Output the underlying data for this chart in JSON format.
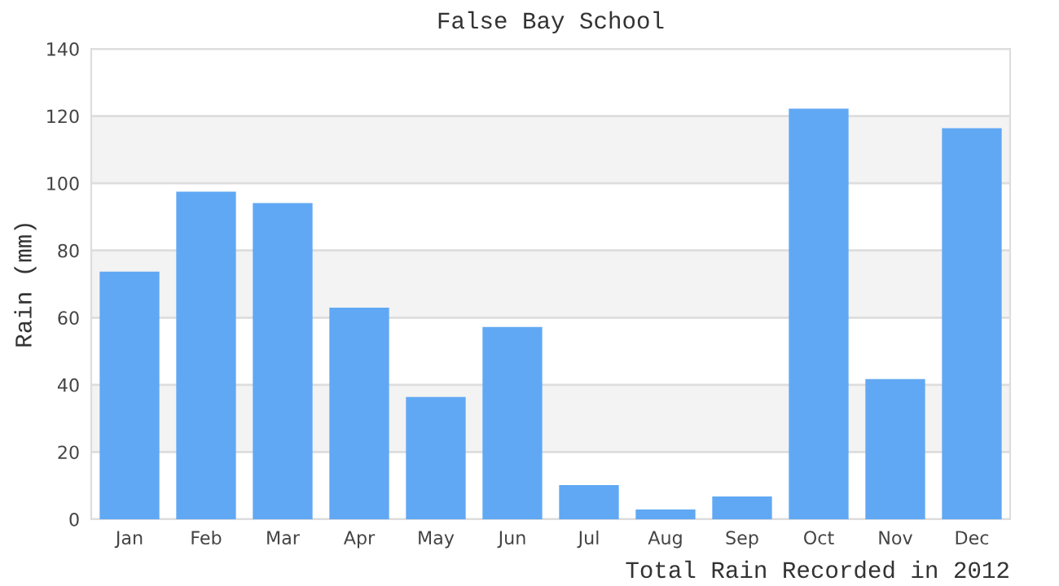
{
  "chart_data": {
    "type": "bar",
    "title": "False Bay School",
    "xlabel": "Total Rain Recorded in 2012",
    "ylabel": "Rain (mm)",
    "categories": [
      "Jan",
      "Feb",
      "Mar",
      "Apr",
      "May",
      "Jun",
      "Jul",
      "Aug",
      "Sep",
      "Oct",
      "Nov",
      "Dec"
    ],
    "values": [
      73.7,
      97.5,
      94.1,
      63.0,
      36.4,
      57.2,
      10.2,
      2.9,
      6.8,
      122.2,
      41.7,
      116.4
    ],
    "color": "#60a8f4",
    "ylim": [
      0,
      140
    ],
    "yticks": [
      0,
      20,
      40,
      60,
      80,
      100,
      120,
      140
    ],
    "grid": "y"
  }
}
